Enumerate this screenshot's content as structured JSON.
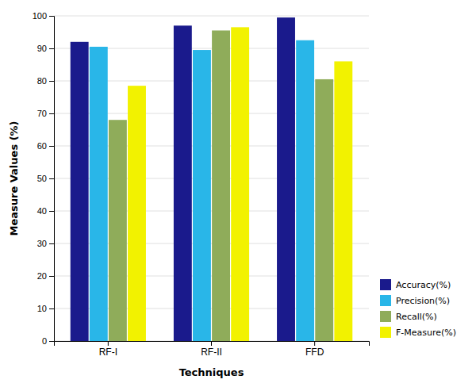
{
  "chart_data": {
    "type": "bar",
    "categories": [
      "RF-I",
      "RF-II",
      "FFD"
    ],
    "series": [
      {
        "name": "Accuracy(%)",
        "color": "#1a1a8c",
        "values": [
          92,
          97,
          99.5
        ]
      },
      {
        "name": "Precision(%)",
        "color": "#29b6e8",
        "values": [
          90.5,
          89.5,
          92.5
        ]
      },
      {
        "name": "Recall(%)",
        "color": "#8fac5a",
        "values": [
          68,
          95.5,
          80.5
        ]
      },
      {
        "name": "F-Measure(%)",
        "color": "#f2f200",
        "values": [
          78.5,
          96.5,
          86
        ]
      }
    ],
    "xlabel": "Techniques",
    "ylabel": "Measure Values (%)",
    "ylim": [
      0,
      100
    ],
    "yticks": [
      0,
      10,
      20,
      30,
      40,
      50,
      60,
      70,
      80,
      90,
      100
    ],
    "grid": true,
    "legend": "lower right"
  }
}
